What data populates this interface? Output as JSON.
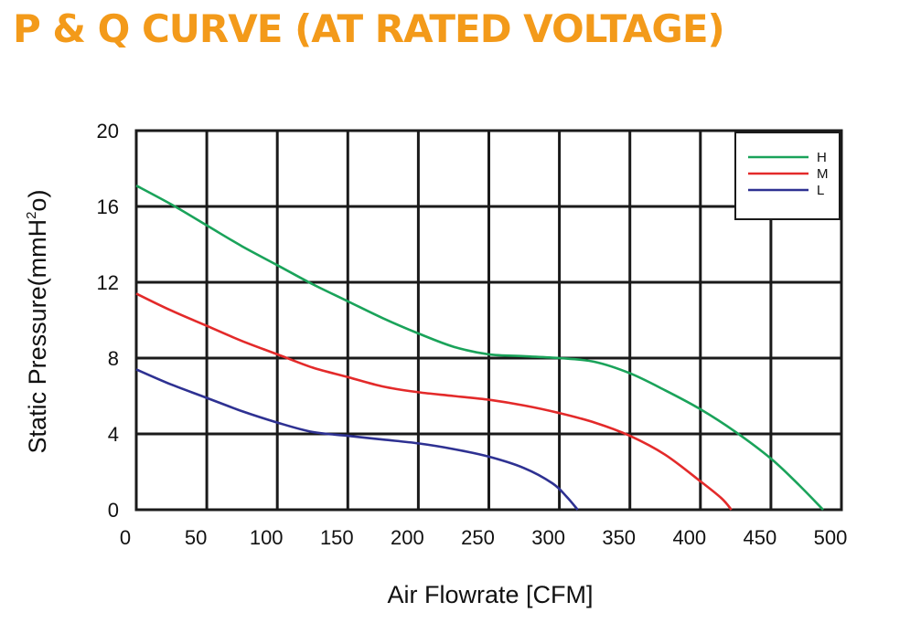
{
  "chart_data": {
    "type": "line",
    "title": "P & Q CURVE (AT RATED VOLTAGE)",
    "title_color": "#f39a1a",
    "xlabel": "Air  Flowrate   [CFM]",
    "ylabel": "Static Pressure(mmH",
    "ylabel_sup": "2",
    "ylabel_tail": "o)",
    "xlim": [
      0,
      500
    ],
    "ylim": [
      0,
      20
    ],
    "xticks": [
      0,
      50,
      100,
      150,
      200,
      250,
      300,
      350,
      400,
      450,
      500
    ],
    "yticks": [
      0,
      4,
      8,
      12,
      16,
      20
    ],
    "grid": true,
    "legend_position": "top-right",
    "series": [
      {
        "name": "H",
        "color": "#1aa35a",
        "x": [
          0,
          25,
          50,
          75,
          100,
          125,
          150,
          175,
          200,
          225,
          250,
          275,
          300,
          325,
          350,
          375,
          400,
          425,
          450,
          470,
          487
        ],
        "y": [
          17.1,
          16.1,
          15.0,
          13.9,
          12.9,
          11.9,
          11.0,
          10.1,
          9.3,
          8.6,
          8.2,
          8.1,
          8.0,
          7.8,
          7.2,
          6.3,
          5.3,
          4.1,
          2.7,
          1.3,
          0.0
        ]
      },
      {
        "name": "M",
        "color": "#e32a2a",
        "x": [
          0,
          25,
          50,
          75,
          100,
          125,
          150,
          175,
          200,
          225,
          250,
          275,
          300,
          325,
          350,
          375,
          400,
          415,
          422
        ],
        "y": [
          11.4,
          10.5,
          9.7,
          8.9,
          8.2,
          7.5,
          7.0,
          6.5,
          6.2,
          6.0,
          5.8,
          5.5,
          5.1,
          4.6,
          3.9,
          2.9,
          1.5,
          0.6,
          0.0
        ]
      },
      {
        "name": "L",
        "color": "#2e3192",
        "x": [
          0,
          25,
          50,
          75,
          100,
          125,
          150,
          175,
          200,
          225,
          250,
          275,
          295,
          305,
          313
        ],
        "y": [
          7.4,
          6.6,
          5.9,
          5.2,
          4.6,
          4.1,
          3.9,
          3.7,
          3.5,
          3.2,
          2.8,
          2.2,
          1.4,
          0.7,
          0.0
        ]
      }
    ]
  }
}
